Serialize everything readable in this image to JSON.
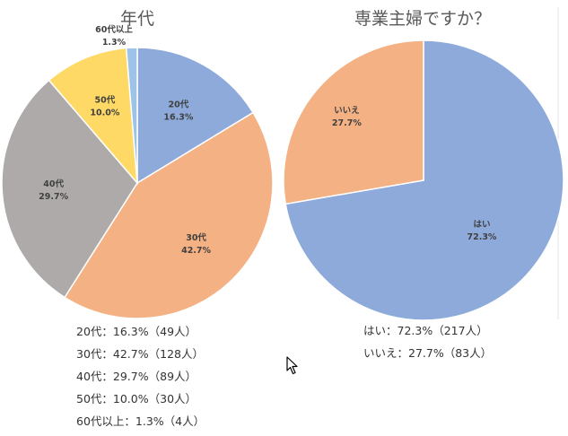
{
  "chart_data": [
    {
      "type": "pie",
      "title": "年代",
      "slices": [
        {
          "label": "20代",
          "percent_label": "16.3%",
          "value": 16.3,
          "color": "#8eaadb"
        },
        {
          "label": "30代",
          "percent_label": "42.7%",
          "value": 42.7,
          "color": "#f4b183"
        },
        {
          "label": "40代",
          "percent_label": "29.7%",
          "value": 29.7,
          "color": "#aeaaaa"
        },
        {
          "label": "50代",
          "percent_label": "10.0%",
          "value": 10.0,
          "color": "#ffd966"
        },
        {
          "label": "60代以上",
          "percent_label": "1.3%",
          "value": 1.3,
          "color": "#9dc3e6"
        }
      ]
    },
    {
      "type": "pie",
      "title": "専業主婦ですか？",
      "slices": [
        {
          "label": "はい",
          "percent_label": "72.3%",
          "value": 72.3,
          "color": "#8eaadb"
        },
        {
          "label": "いいえ",
          "percent_label": "27.7%",
          "value": 27.7,
          "color": "#f4b183"
        }
      ]
    }
  ],
  "summary": {
    "age": [
      "20代：16.3%（49人）",
      "30代：42.7%（128人）",
      "40代：29.7%（89人）",
      "50代：10.0%（30人）",
      "60代以上：1.3%（4人）"
    ],
    "housewife": [
      "はい：72.3%（217人）",
      "いいえ：27.7%（83人）"
    ]
  }
}
